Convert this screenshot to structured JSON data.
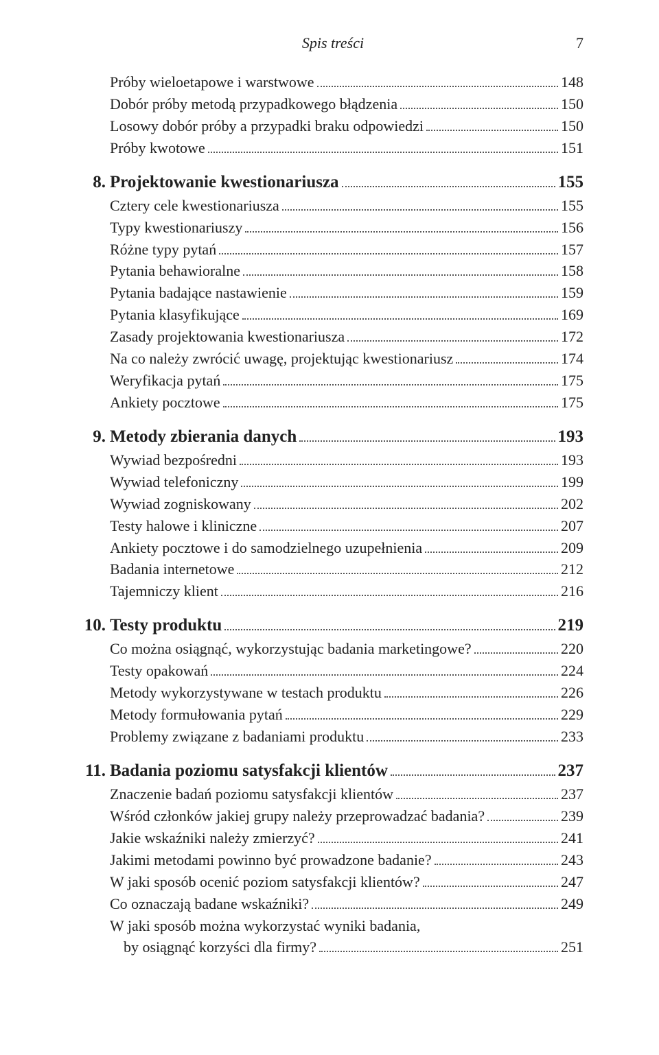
{
  "header": {
    "running_title": "Spis treści",
    "page_number": "7"
  },
  "pre_entries": [
    {
      "text": "Próby wieloetapowe i warstwowe",
      "page": "148"
    },
    {
      "text": "Dobór próby metodą przypadkowego błądzenia",
      "page": "150"
    },
    {
      "text": "Losowy dobór próby a przypadki braku odpowiedzi",
      "page": "150"
    },
    {
      "text": "Próby kwotowe",
      "page": " 151"
    }
  ],
  "sections": [
    {
      "num": "8.",
      "title": "Projektowanie kwestionariusza",
      "page": "155",
      "entries": [
        {
          "text": "Cztery cele kwestionariusza",
          "page": "155"
        },
        {
          "text": "Typy kwestionariuszy",
          "page": "156"
        },
        {
          "text": "Różne typy pytań",
          "page": "157"
        },
        {
          "text": "Pytania behawioralne",
          "page": "158"
        },
        {
          "text": "Pytania badające nastawienie",
          "page": "159"
        },
        {
          "text": "Pytania klasyfikujące",
          "page": "169"
        },
        {
          "text": "Zasady projektowania kwestionariusza",
          "page": "172"
        },
        {
          "text": "Na co należy zwrócić uwagę, projektując kwestionariusz",
          "page": "174"
        },
        {
          "text": "Weryfikacja pytań",
          "page": "175"
        },
        {
          "text": "Ankiety pocztowe",
          "page": "175"
        }
      ]
    },
    {
      "num": "9.",
      "title": "Metody zbierania danych",
      "page": "193",
      "entries": [
        {
          "text": "Wywiad bezpośredni",
          "page": "193"
        },
        {
          "text": "Wywiad telefoniczny",
          "page": "199"
        },
        {
          "text": "Wywiad zogniskowany",
          "page": " 202"
        },
        {
          "text": "Testy halowe i kliniczne",
          "page": " 207"
        },
        {
          "text": "Ankiety pocztowe i do samodzielnego uzupełnienia",
          "page": " 209"
        },
        {
          "text": "Badania internetowe",
          "page": "212"
        },
        {
          "text": "Tajemniczy klient",
          "page": " 216"
        }
      ]
    },
    {
      "num": "10.",
      "title": "Testy produktu",
      "page": "219",
      "entries": [
        {
          "text": "Co można osiągnąć, wykorzystując badania marketingowe?",
          "page": " 220"
        },
        {
          "text": "Testy opakowań",
          "page": " 224"
        },
        {
          "text": "Metody wykorzystywane w testach produktu",
          "page": "226"
        },
        {
          "text": "Metody formułowania pytań",
          "page": " 229"
        },
        {
          "text": "Problemy związane z badaniami produktu",
          "page": "233"
        }
      ]
    },
    {
      "num": "11.",
      "title": "Badania poziomu satysfakcji klientów",
      "page": " 237",
      "entries": [
        {
          "text": "Znaczenie badań poziomu satysfakcji klientów",
          "page": "237"
        },
        {
          "text": "Wśród członków jakiej grupy należy przeprowadzać badania?",
          "page": "239"
        },
        {
          "text": "Jakie wskaźniki należy zmierzyć?",
          "page": "241"
        },
        {
          "text": "Jakimi metodami powinno być prowadzone badanie?",
          "page": "243"
        },
        {
          "text": "W jaki sposób ocenić poziom satysfakcji klientów?",
          "page": " 247"
        },
        {
          "text": "Co oznaczają badane wskaźniki?",
          "page": " 249"
        },
        {
          "text": "W jaki sposób można wykorzystać wyniki badania,",
          "page": null,
          "continuation": "by osiągnąć korzyści dla firmy?",
          "cont_page": "251"
        }
      ]
    }
  ]
}
